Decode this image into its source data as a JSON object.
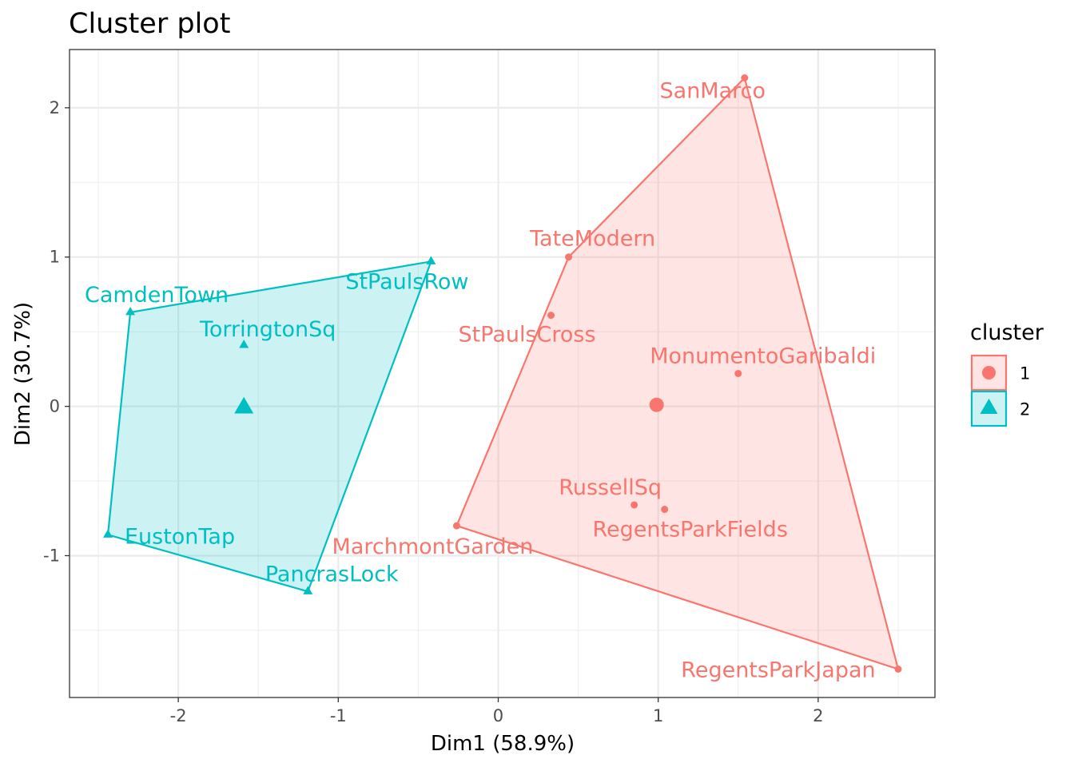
{
  "chart_data": {
    "type": "scatter",
    "title": "Cluster plot",
    "xlabel": "Dim1 (58.9%)",
    "ylabel": "Dim2 (30.7%)",
    "xlim": [
      -2.68,
      2.73
    ],
    "ylim": [
      -1.95,
      2.39
    ],
    "xticks": [
      -2,
      -1,
      0,
      1,
      2
    ],
    "xtick_labels": [
      "-2",
      "-1",
      "0",
      "1",
      "2"
    ],
    "yticks": [
      -1,
      0,
      1,
      2
    ],
    "ytick_labels": [
      "-1",
      "0",
      "1",
      "2"
    ],
    "grid": true,
    "legend_title": "cluster",
    "clusters": [
      {
        "name": "1",
        "color": "#F8766D",
        "shape": "circle",
        "center": [
          0.99,
          0.01
        ],
        "hull": [
          "SanMarco",
          "TateModern",
          "MarchmontGarden",
          "RegentsParkJapan"
        ],
        "points": [
          {
            "label": "SanMarco",
            "x": 1.54,
            "y": 2.2
          },
          {
            "label": "TateModern",
            "x": 0.44,
            "y": 1.0
          },
          {
            "label": "StPaulsCross",
            "x": 0.33,
            "y": 0.61
          },
          {
            "label": "MonumentoGaribaldi",
            "x": 1.5,
            "y": 0.22
          },
          {
            "label": "RussellSq",
            "x": 0.85,
            "y": -0.66
          },
          {
            "label": "RegentsParkFields",
            "x": 1.04,
            "y": -0.69
          },
          {
            "label": "MarchmontGarden",
            "x": -0.26,
            "y": -0.8
          },
          {
            "label": "RegentsParkJapan",
            "x": 2.5,
            "y": -1.76
          }
        ]
      },
      {
        "name": "2",
        "color": "#00BFC4",
        "shape": "triangle",
        "center": [
          -1.59,
          -0.01
        ],
        "hull": [
          "StPaulsRow",
          "CamdenTown",
          "EustonTap",
          "PancrasLock"
        ],
        "points": [
          {
            "label": "CamdenTown",
            "x": -2.3,
            "y": 0.63
          },
          {
            "label": "TorringtonSq",
            "x": -1.59,
            "y": 0.41
          },
          {
            "label": "StPaulsRow",
            "x": -0.42,
            "y": 0.97
          },
          {
            "label": "EustonTap",
            "x": -2.44,
            "y": -0.86
          },
          {
            "label": "PancrasLock",
            "x": -1.19,
            "y": -1.24
          }
        ]
      }
    ]
  }
}
